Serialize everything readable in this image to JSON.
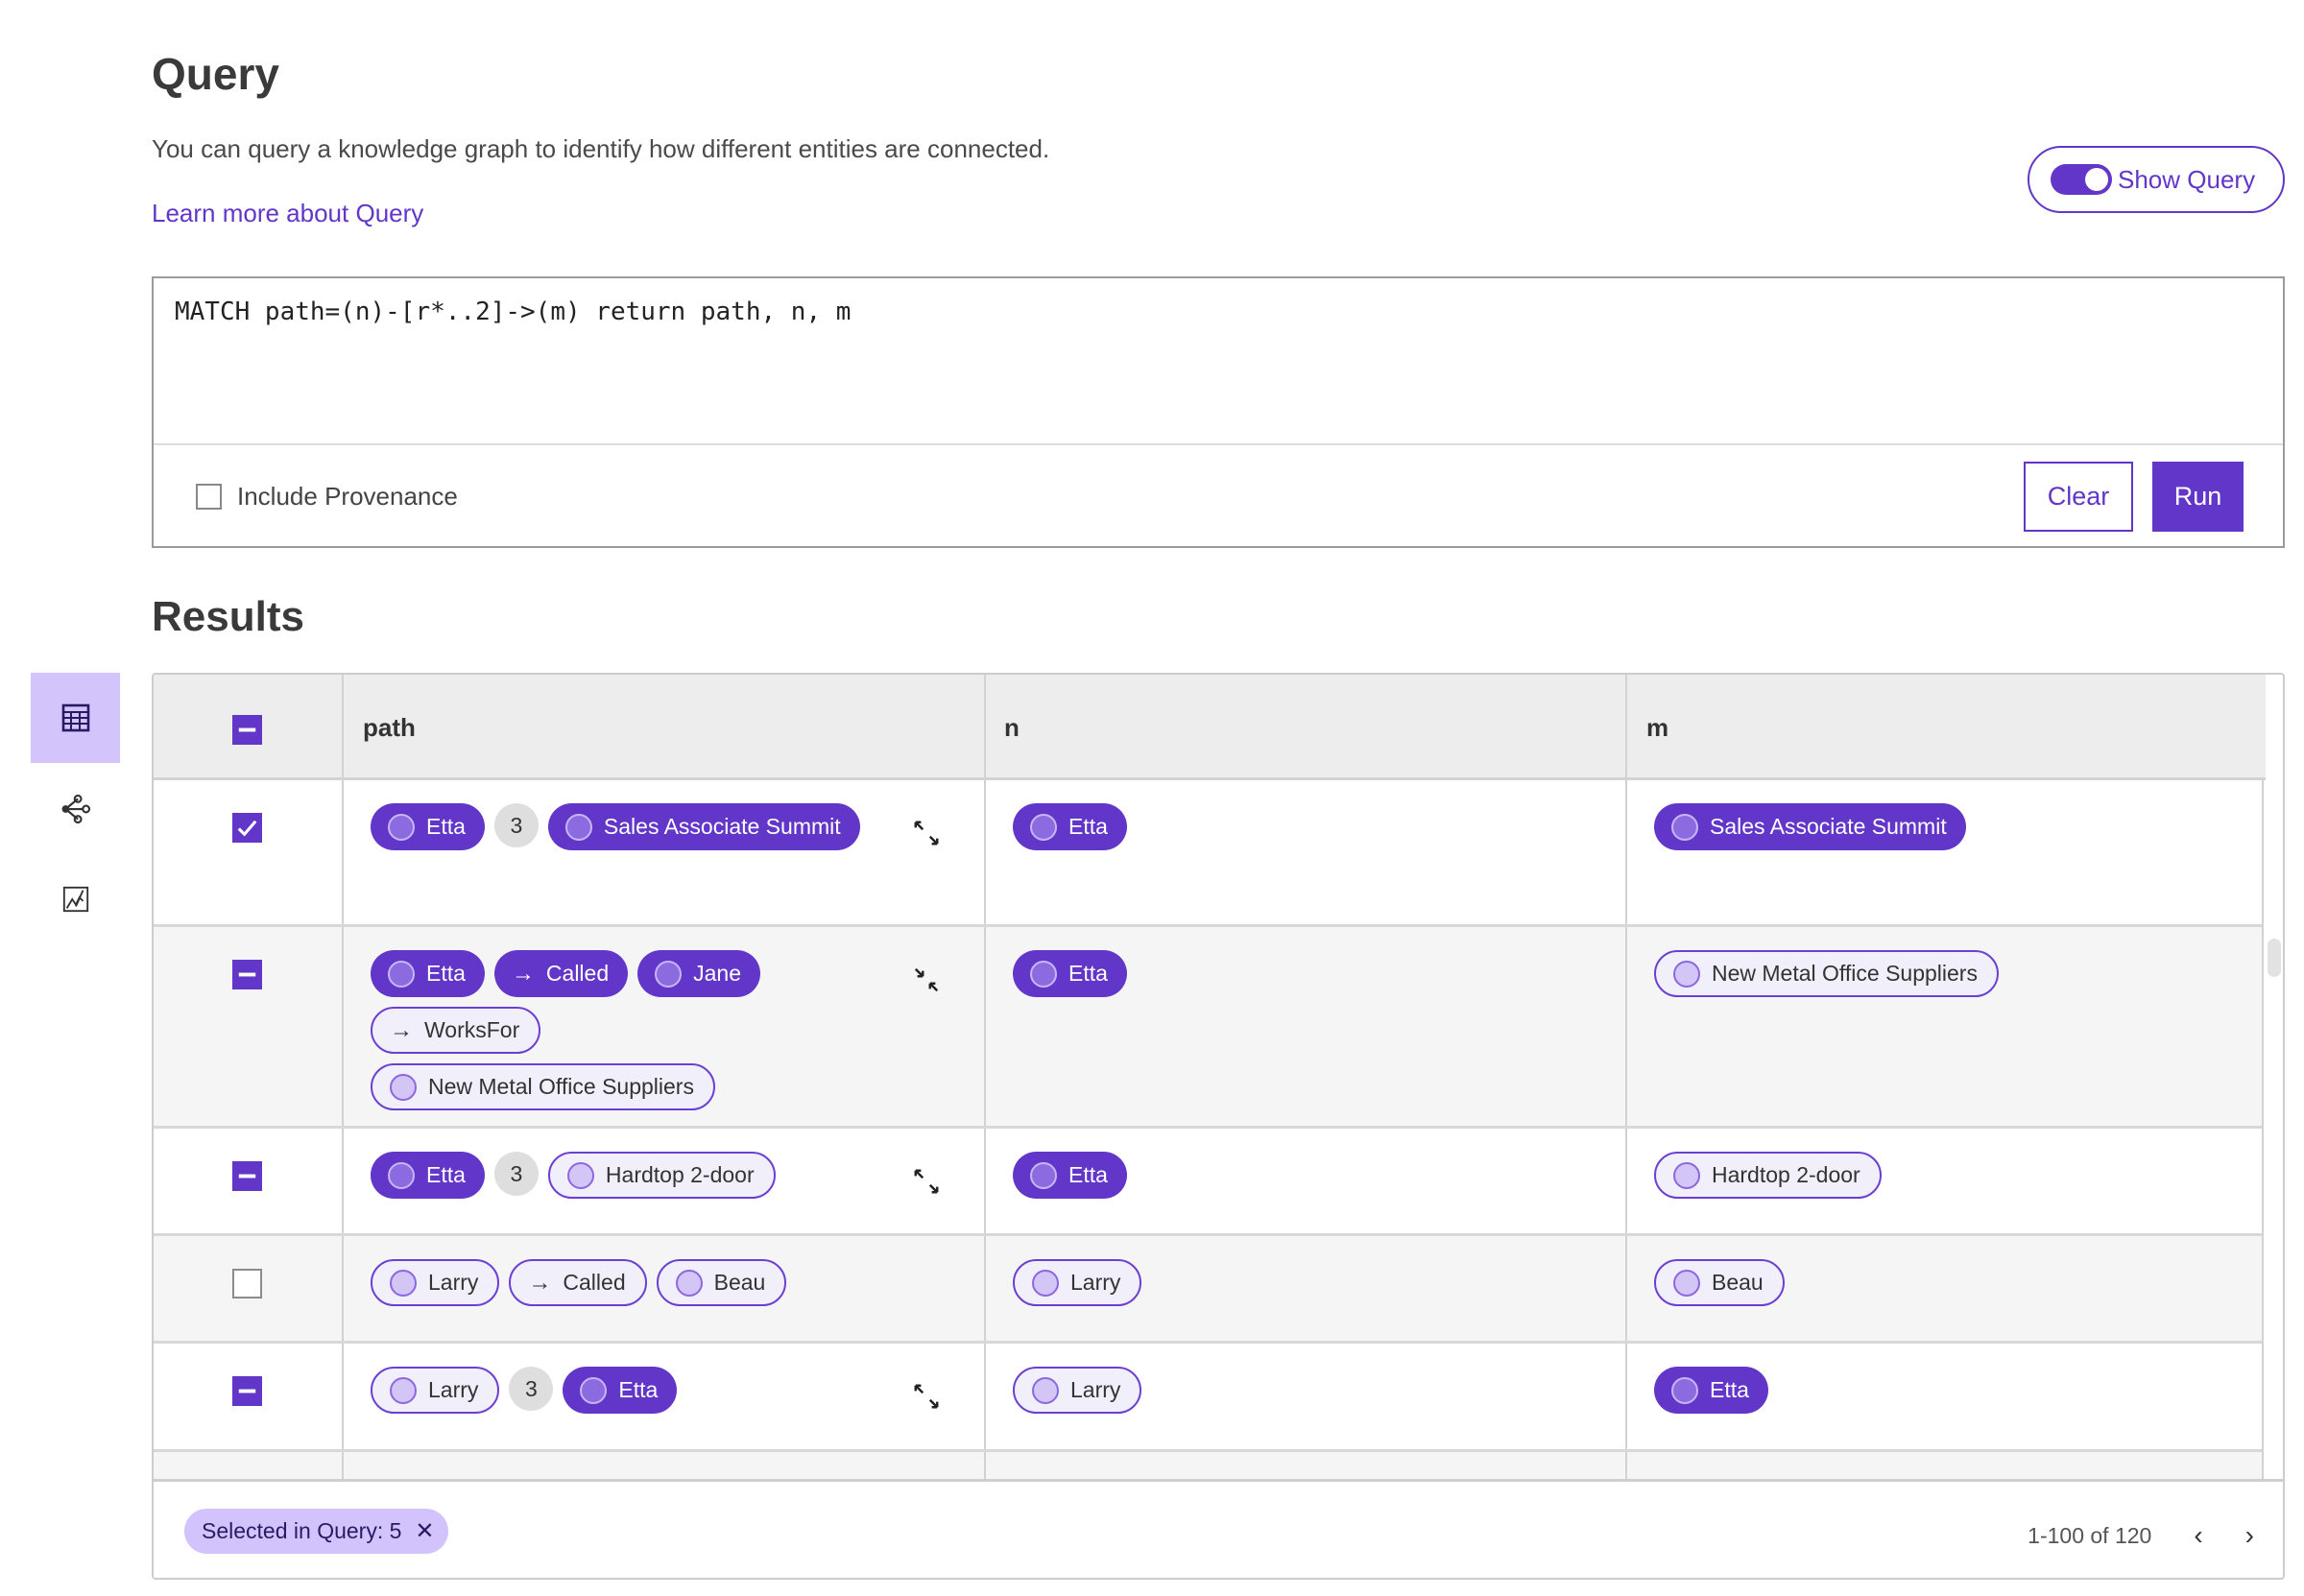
{
  "header": {
    "title": "Query",
    "description": "You can query a knowledge graph to identify how different entities are connected.",
    "learn_more": "Learn more about Query",
    "show_query_label": "Show Query",
    "show_query_on": true
  },
  "query": {
    "text": "MATCH path=(n)-[r*..2]->(m) return path, n, m",
    "include_provenance_label": "Include Provenance",
    "include_provenance": false,
    "clear_label": "Clear",
    "run_label": "Run"
  },
  "results": {
    "title": "Results",
    "sidebar": [
      {
        "icon": "table-icon",
        "active": true
      },
      {
        "icon": "graph-icon",
        "active": false
      },
      {
        "icon": "chart-icon",
        "active": false
      }
    ],
    "columns": [
      "path",
      "n",
      "m"
    ],
    "header_checkbox": "indeterminate",
    "rows": [
      {
        "check": "checked",
        "expand": "expand",
        "path": [
          {
            "t": "node",
            "style": "filled",
            "label": "Etta"
          },
          {
            "t": "count",
            "label": "3"
          },
          {
            "t": "node",
            "style": "filled",
            "label": "Sales Associate Summit"
          }
        ],
        "n": {
          "style": "filled",
          "label": "Etta"
        },
        "m": {
          "style": "filled",
          "label": "Sales Associate Summit"
        }
      },
      {
        "check": "indeterminate",
        "expand": "collapse",
        "path": [
          {
            "t": "node",
            "style": "filled",
            "label": "Etta"
          },
          {
            "t": "edge",
            "style": "filled",
            "label": "Called"
          },
          {
            "t": "node",
            "style": "filled",
            "label": "Jane"
          },
          {
            "t": "edge",
            "style": "outline",
            "label": "WorksFor"
          },
          {
            "t": "node",
            "style": "outline",
            "label": "New Metal Office Suppliers"
          }
        ],
        "n": {
          "style": "filled",
          "label": "Etta"
        },
        "m": {
          "style": "outline",
          "label": "New Metal Office Suppliers"
        }
      },
      {
        "check": "indeterminate",
        "expand": "expand",
        "path": [
          {
            "t": "node",
            "style": "filled",
            "label": "Etta"
          },
          {
            "t": "count",
            "label": "3"
          },
          {
            "t": "node",
            "style": "outline",
            "label": "Hardtop 2-door"
          }
        ],
        "n": {
          "style": "filled",
          "label": "Etta"
        },
        "m": {
          "style": "outline",
          "label": "Hardtop 2-door"
        }
      },
      {
        "check": "unchecked",
        "expand": "none",
        "path": [
          {
            "t": "node",
            "style": "outline",
            "label": "Larry"
          },
          {
            "t": "edge",
            "style": "outline",
            "label": "Called"
          },
          {
            "t": "node",
            "style": "outline",
            "label": "Beau"
          }
        ],
        "n": {
          "style": "outline",
          "label": "Larry"
        },
        "m": {
          "style": "outline",
          "label": "Beau"
        }
      },
      {
        "check": "indeterminate",
        "expand": "expand",
        "path": [
          {
            "t": "node",
            "style": "outline",
            "label": "Larry"
          },
          {
            "t": "count",
            "label": "3"
          },
          {
            "t": "node",
            "style": "filled",
            "label": "Etta"
          }
        ],
        "n": {
          "style": "outline",
          "label": "Larry"
        },
        "m": {
          "style": "filled",
          "label": "Etta"
        }
      }
    ],
    "footer": {
      "selected_label": "Selected in Query: 5",
      "pagination": "1-100 of 120"
    }
  },
  "colors": {
    "accent": "#6236c8",
    "accent_light": "#d2c3fc",
    "row_alt": "#f5f5f5"
  }
}
